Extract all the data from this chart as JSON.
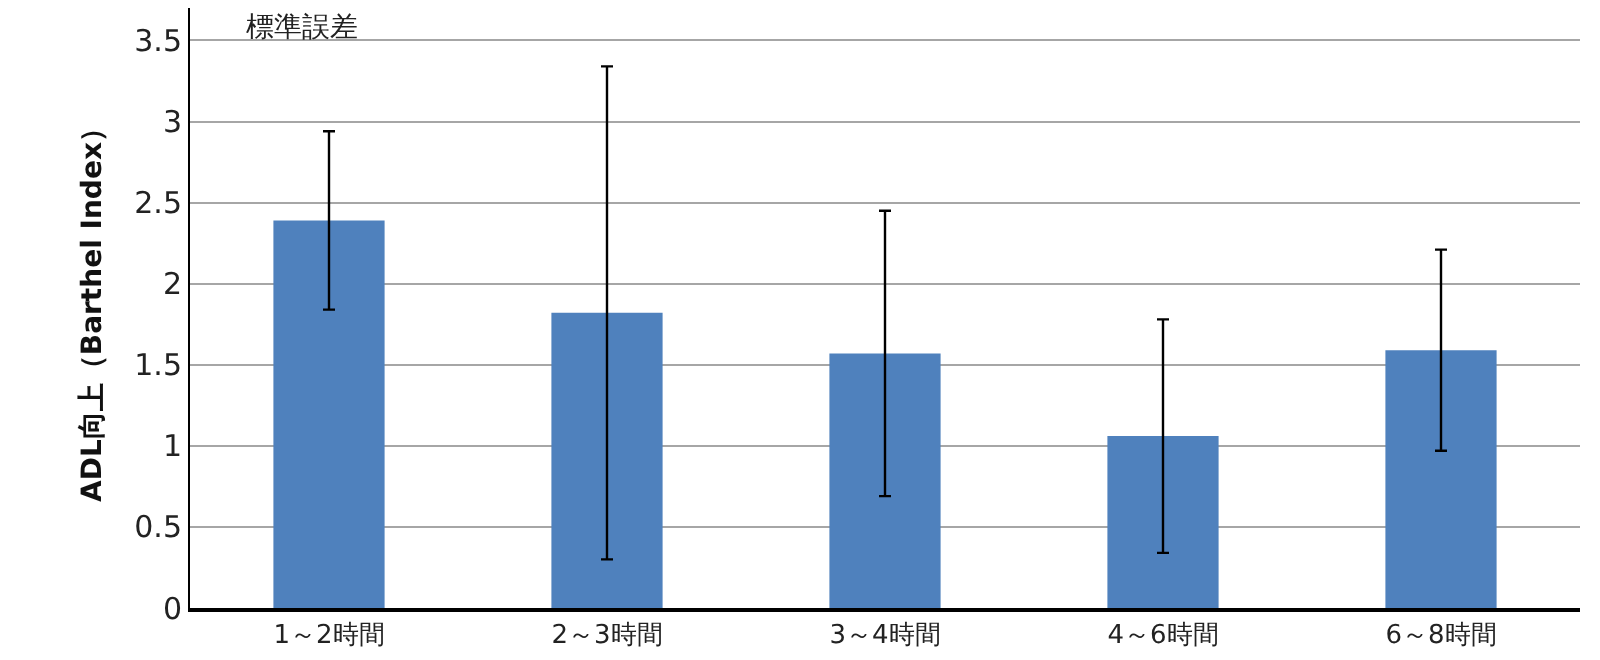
{
  "chart_data": {
    "type": "bar",
    "ylabel": "ADL向上（Barthel Index）",
    "annotations": [
      "標準誤差"
    ],
    "categories": [
      "1～2時間",
      "2～3時間",
      "3～4時間",
      "4～6時間",
      "6～8時間"
    ],
    "values": [
      2.39,
      1.82,
      1.57,
      1.06,
      1.59
    ],
    "errors": [
      0.55,
      1.52,
      0.88,
      0.72,
      0.62
    ],
    "color": "#4f81bd",
    "ylim": [
      0,
      3.7
    ],
    "yticks": [
      0,
      0.5,
      1,
      1.5,
      2,
      2.5,
      3,
      3.5
    ],
    "grid": "y"
  }
}
